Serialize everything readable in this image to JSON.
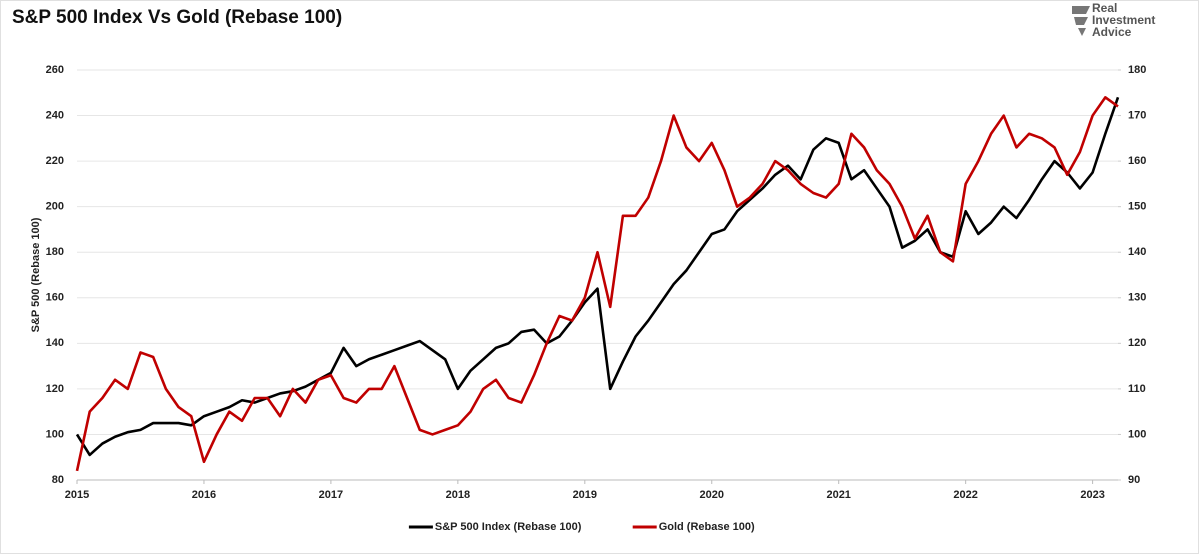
{
  "chart_data": {
    "type": "line",
    "title": "S&P 500 Index Vs Gold (Rebase 100)",
    "y_label": "S&P 500 (Rebase 100)",
    "x": [
      2015.0,
      2015.1,
      2015.2,
      2015.3,
      2015.4,
      2015.5,
      2015.6,
      2015.7,
      2015.8,
      2015.9,
      2016.0,
      2016.1,
      2016.2,
      2016.3,
      2016.4,
      2016.5,
      2016.6,
      2016.7,
      2016.8,
      2016.9,
      2017.0,
      2017.1,
      2017.2,
      2017.3,
      2017.4,
      2017.5,
      2017.6,
      2017.7,
      2017.8,
      2017.9,
      2018.0,
      2018.1,
      2018.2,
      2018.3,
      2018.4,
      2018.5,
      2018.6,
      2018.7,
      2018.8,
      2018.9,
      2019.0,
      2019.1,
      2019.2,
      2019.3,
      2019.4,
      2019.5,
      2019.6,
      2019.7,
      2019.8,
      2019.9,
      2020.0,
      2020.1,
      2020.2,
      2020.3,
      2020.4,
      2020.5,
      2020.6,
      2020.7,
      2020.8,
      2020.9,
      2021.0,
      2021.1,
      2021.2,
      2021.3,
      2021.4,
      2021.5,
      2021.6,
      2021.7,
      2021.8,
      2021.9,
      2022.0,
      2022.1,
      2022.2,
      2022.3,
      2022.4,
      2022.5,
      2022.6,
      2022.7,
      2022.8,
      2022.9,
      2023.0,
      2023.1,
      2023.2
    ],
    "series": [
      {
        "name": "S&P 500 Index (Rebase 100)",
        "color": "#000000",
        "axis": "y",
        "values": [
          100,
          91,
          96,
          99,
          101,
          102,
          105,
          105,
          105,
          104,
          108,
          110,
          112,
          115,
          114,
          116,
          118,
          119,
          121,
          124,
          127,
          138,
          130,
          133,
          135,
          137,
          139,
          141,
          137,
          133,
          120,
          128,
          133,
          138,
          140,
          145,
          146,
          140,
          143,
          150,
          158,
          164,
          120,
          132,
          143,
          150,
          158,
          166,
          172,
          180,
          188,
          190,
          198,
          203,
          208,
          214,
          218,
          212,
          225,
          230,
          228,
          212,
          216,
          208,
          200,
          182,
          185,
          190,
          180,
          178,
          198,
          188,
          193,
          200,
          195,
          203,
          212,
          220,
          215,
          208,
          215,
          232,
          248
        ]
      },
      {
        "name": "Gold (Rebase  100)",
        "color": "#c00000",
        "axis": "y2",
        "values": [
          92,
          105,
          108,
          112,
          110,
          118,
          117,
          110,
          106,
          104,
          94,
          100,
          105,
          103,
          108,
          108,
          104,
          110,
          107,
          112,
          113,
          108,
          107,
          110,
          110,
          115,
          108,
          101,
          100,
          101,
          102,
          105,
          110,
          112,
          108,
          107,
          113,
          120,
          126,
          125,
          130,
          140,
          128,
          148,
          148,
          152,
          160,
          170,
          163,
          160,
          164,
          158,
          150,
          152,
          155,
          160,
          158,
          155,
          153,
          152,
          155,
          166,
          163,
          158,
          155,
          150,
          143,
          148,
          140,
          138,
          155,
          160,
          166,
          170,
          163,
          166,
          165,
          163,
          157,
          162,
          170,
          174,
          172
        ]
      }
    ],
    "xlim": [
      2015,
      2023.2
    ],
    "xticks": [
      2015,
      2016,
      2017,
      2018,
      2019,
      2020,
      2021,
      2022,
      2023
    ],
    "ylim": [
      80,
      260
    ],
    "yticks": [
      80,
      100,
      120,
      140,
      160,
      180,
      200,
      220,
      240,
      260
    ],
    "y2lim": [
      90,
      180
    ],
    "y2ticks": [
      90,
      100,
      110,
      120,
      130,
      140,
      150,
      160,
      170,
      180
    ],
    "grid": true,
    "legend": "bottom"
  },
  "logo": {
    "lines": [
      "Real",
      "Investment",
      "Advice"
    ]
  }
}
